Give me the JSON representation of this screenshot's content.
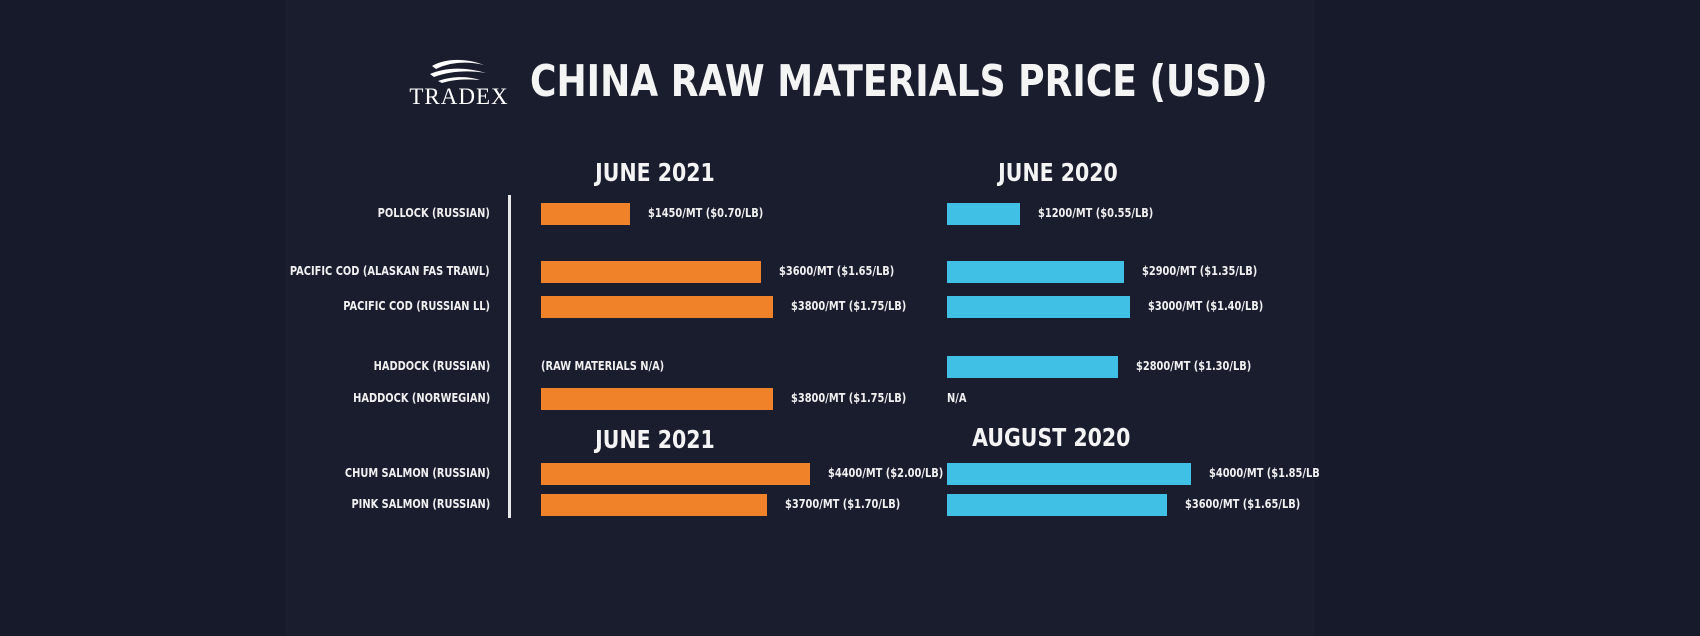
{
  "brand": {
    "logo_text": "TRADEX"
  },
  "chart_data": {
    "type": "bar",
    "title": "CHINA RAW MATERIALS PRICE (USD)",
    "orientation": "horizontal",
    "unit": "$/MT",
    "groups": [
      {
        "left_period": "JUNE 2021",
        "right_period": "JUNE 2020"
      },
      {
        "left_period": "JUNE 2021",
        "right_period": "AUGUST 2020"
      }
    ],
    "categories": [
      "POLLOCK (RUSSIAN)",
      "PACIFIC COD (ALASKAN FAS TRAWL)",
      "PACIFIC COD (RUSSIAN LL)",
      "HADDOCK (RUSSIAN)",
      "HADDOCK (NORWEGIAN)",
      "CHUM SALMON (RUSSIAN)",
      "PINK SALMON (RUSSIAN)"
    ],
    "series": [
      {
        "color": "#f0822a",
        "values": [
          1450,
          3600,
          3800,
          null,
          3800,
          4400,
          3700
        ],
        "labels": [
          "$1450/MT ($0.70/LB)",
          "$3600/MT ($1.65/LB)",
          "$3800/MT ($1.75/LB)",
          "(RAW MATERIALS N/A)",
          "$3800/MT ($1.75/LB)",
          "$4400/MT ($2.00/LB)",
          "$3700/MT ($1.70/LB)"
        ]
      },
      {
        "color": "#41c0e6",
        "values": [
          1200,
          2900,
          3000,
          2800,
          null,
          4000,
          3600
        ],
        "labels": [
          "$1200/MT ($0.55/LB)",
          "$2900/MT ($1.35/LB)",
          "$3000/MT ($1.40/LB)",
          "$2800/MT ($1.30/LB)",
          "N/A",
          "$4000/MT ($1.85/LB",
          "$3600/MT ($1.65/LB)"
        ]
      }
    ]
  }
}
